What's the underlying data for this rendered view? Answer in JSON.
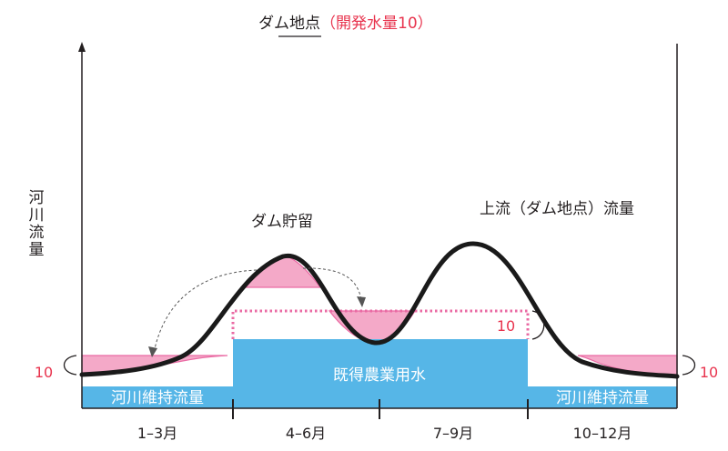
{
  "title": {
    "main": "ダム地点",
    "sub": "（開発水量10）"
  },
  "axis": {
    "ylabel_lines": [
      "河",
      "川",
      "流",
      "量"
    ]
  },
  "labels": {
    "dam_storage": "ダム貯留",
    "upstream_flow": "上流（ダム地点）流量",
    "existing_water": "既得農業用水",
    "maintenance_flow_left": "河川維持流量",
    "maintenance_flow_right": "河川維持流量",
    "ten_left": "10",
    "ten_right": "10",
    "ten_dev": "10"
  },
  "periods": [
    "1–3月",
    "4–6月",
    "7–9月",
    "10–12月"
  ],
  "colors": {
    "blue": "#56b6e7",
    "pink": "#f4a9c8",
    "pink_line": "#ea6aa3",
    "red_text": "#e8344e",
    "curve": "#1a1a1a"
  }
}
